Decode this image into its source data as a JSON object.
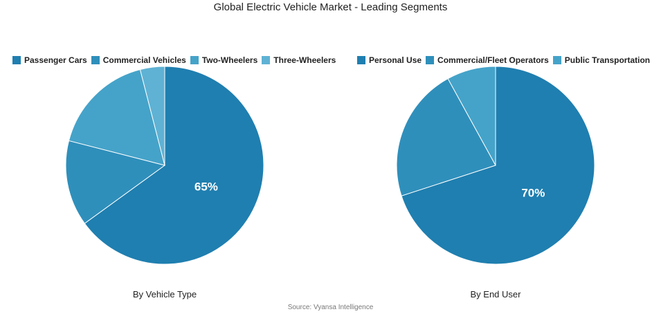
{
  "title": "Global Electric Vehicle Market - Leading Segments",
  "source": "Source: Vyansa Intelligence",
  "chart_data": [
    {
      "type": "pie",
      "caption": "By Vehicle Type",
      "legend_position": "top",
      "categories": [
        "Passenger Cars",
        "Commercial Vehicles",
        "Two-Wheelers",
        "Three-Wheelers"
      ],
      "values": [
        65,
        14,
        17,
        4
      ],
      "colors": [
        "#1f7fb0",
        "#2f8fbb",
        "#45a3c9",
        "#5fb2d4"
      ],
      "data_labels": [
        "65%",
        "",
        "",
        ""
      ]
    },
    {
      "type": "pie",
      "caption": "By End User",
      "legend_position": "top",
      "categories": [
        "Personal Use",
        "Commercial/Fleet Operators",
        "Public Transportation"
      ],
      "values": [
        70,
        22,
        8
      ],
      "colors": [
        "#1f7fb0",
        "#2f8fbb",
        "#45a3c9"
      ],
      "data_labels": [
        "70%",
        "",
        ""
      ]
    }
  ]
}
